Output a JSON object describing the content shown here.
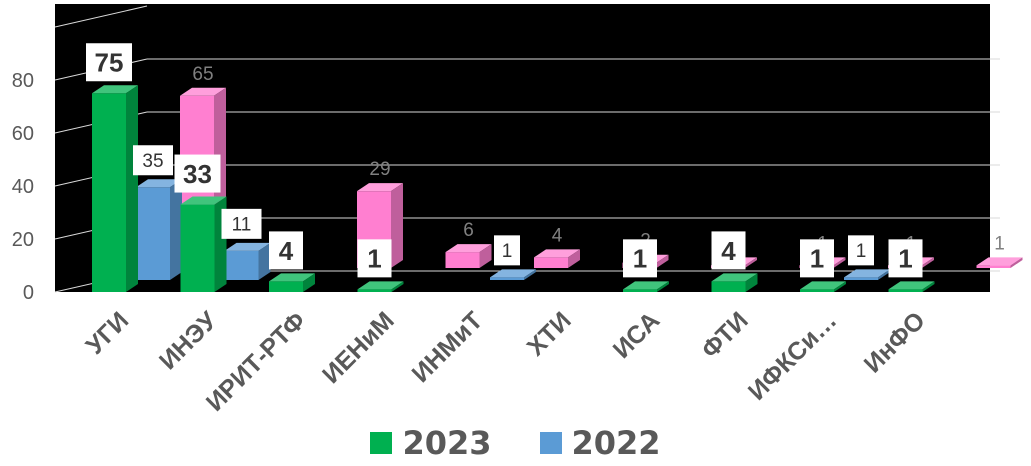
{
  "chart_data": {
    "type": "bar",
    "categories": [
      "УГИ",
      "ИНЭУ",
      "ИРИТ-РТФ",
      "ИЕНиМ",
      "ИНМиТ",
      "ХТИ",
      "ИСА",
      "ФТИ",
      "ИФКСи…",
      "ИнФО"
    ],
    "yticks": [
      "0",
      "20",
      "40",
      "60",
      "80"
    ],
    "ylim": [
      0,
      100
    ],
    "grid": true,
    "legend_position": "bottom",
    "series": [
      {
        "name": "2023",
        "color": "#00b050",
        "label_style": "bold-box",
        "values": [
          75,
          33,
          4,
          1,
          null,
          null,
          1,
          4,
          1,
          1
        ],
        "labels": [
          "75",
          "33",
          "4",
          "1",
          null,
          null,
          "1",
          "4",
          "1",
          "1"
        ]
      },
      {
        "name": "2022",
        "color": "#5b9bd5",
        "label_style": "box",
        "values": [
          35,
          11,
          null,
          null,
          1,
          null,
          null,
          null,
          1,
          null
        ],
        "labels": [
          "35",
          "11",
          null,
          null,
          "1",
          null,
          null,
          null,
          "1",
          null
        ]
      },
      {
        "name": "",
        "color": "#ff7fd0",
        "label_style": "plain",
        "values": [
          65,
          null,
          29,
          6,
          4,
          2,
          1,
          1,
          1,
          1
        ],
        "labels": [
          "65",
          null,
          "29",
          "6",
          "4",
          "2",
          "1",
          "1",
          "1",
          "1"
        ]
      }
    ]
  },
  "legend": [
    {
      "label": "2023",
      "color": "#00b050"
    },
    {
      "label": "2022",
      "color": "#5b9bd5"
    }
  ]
}
